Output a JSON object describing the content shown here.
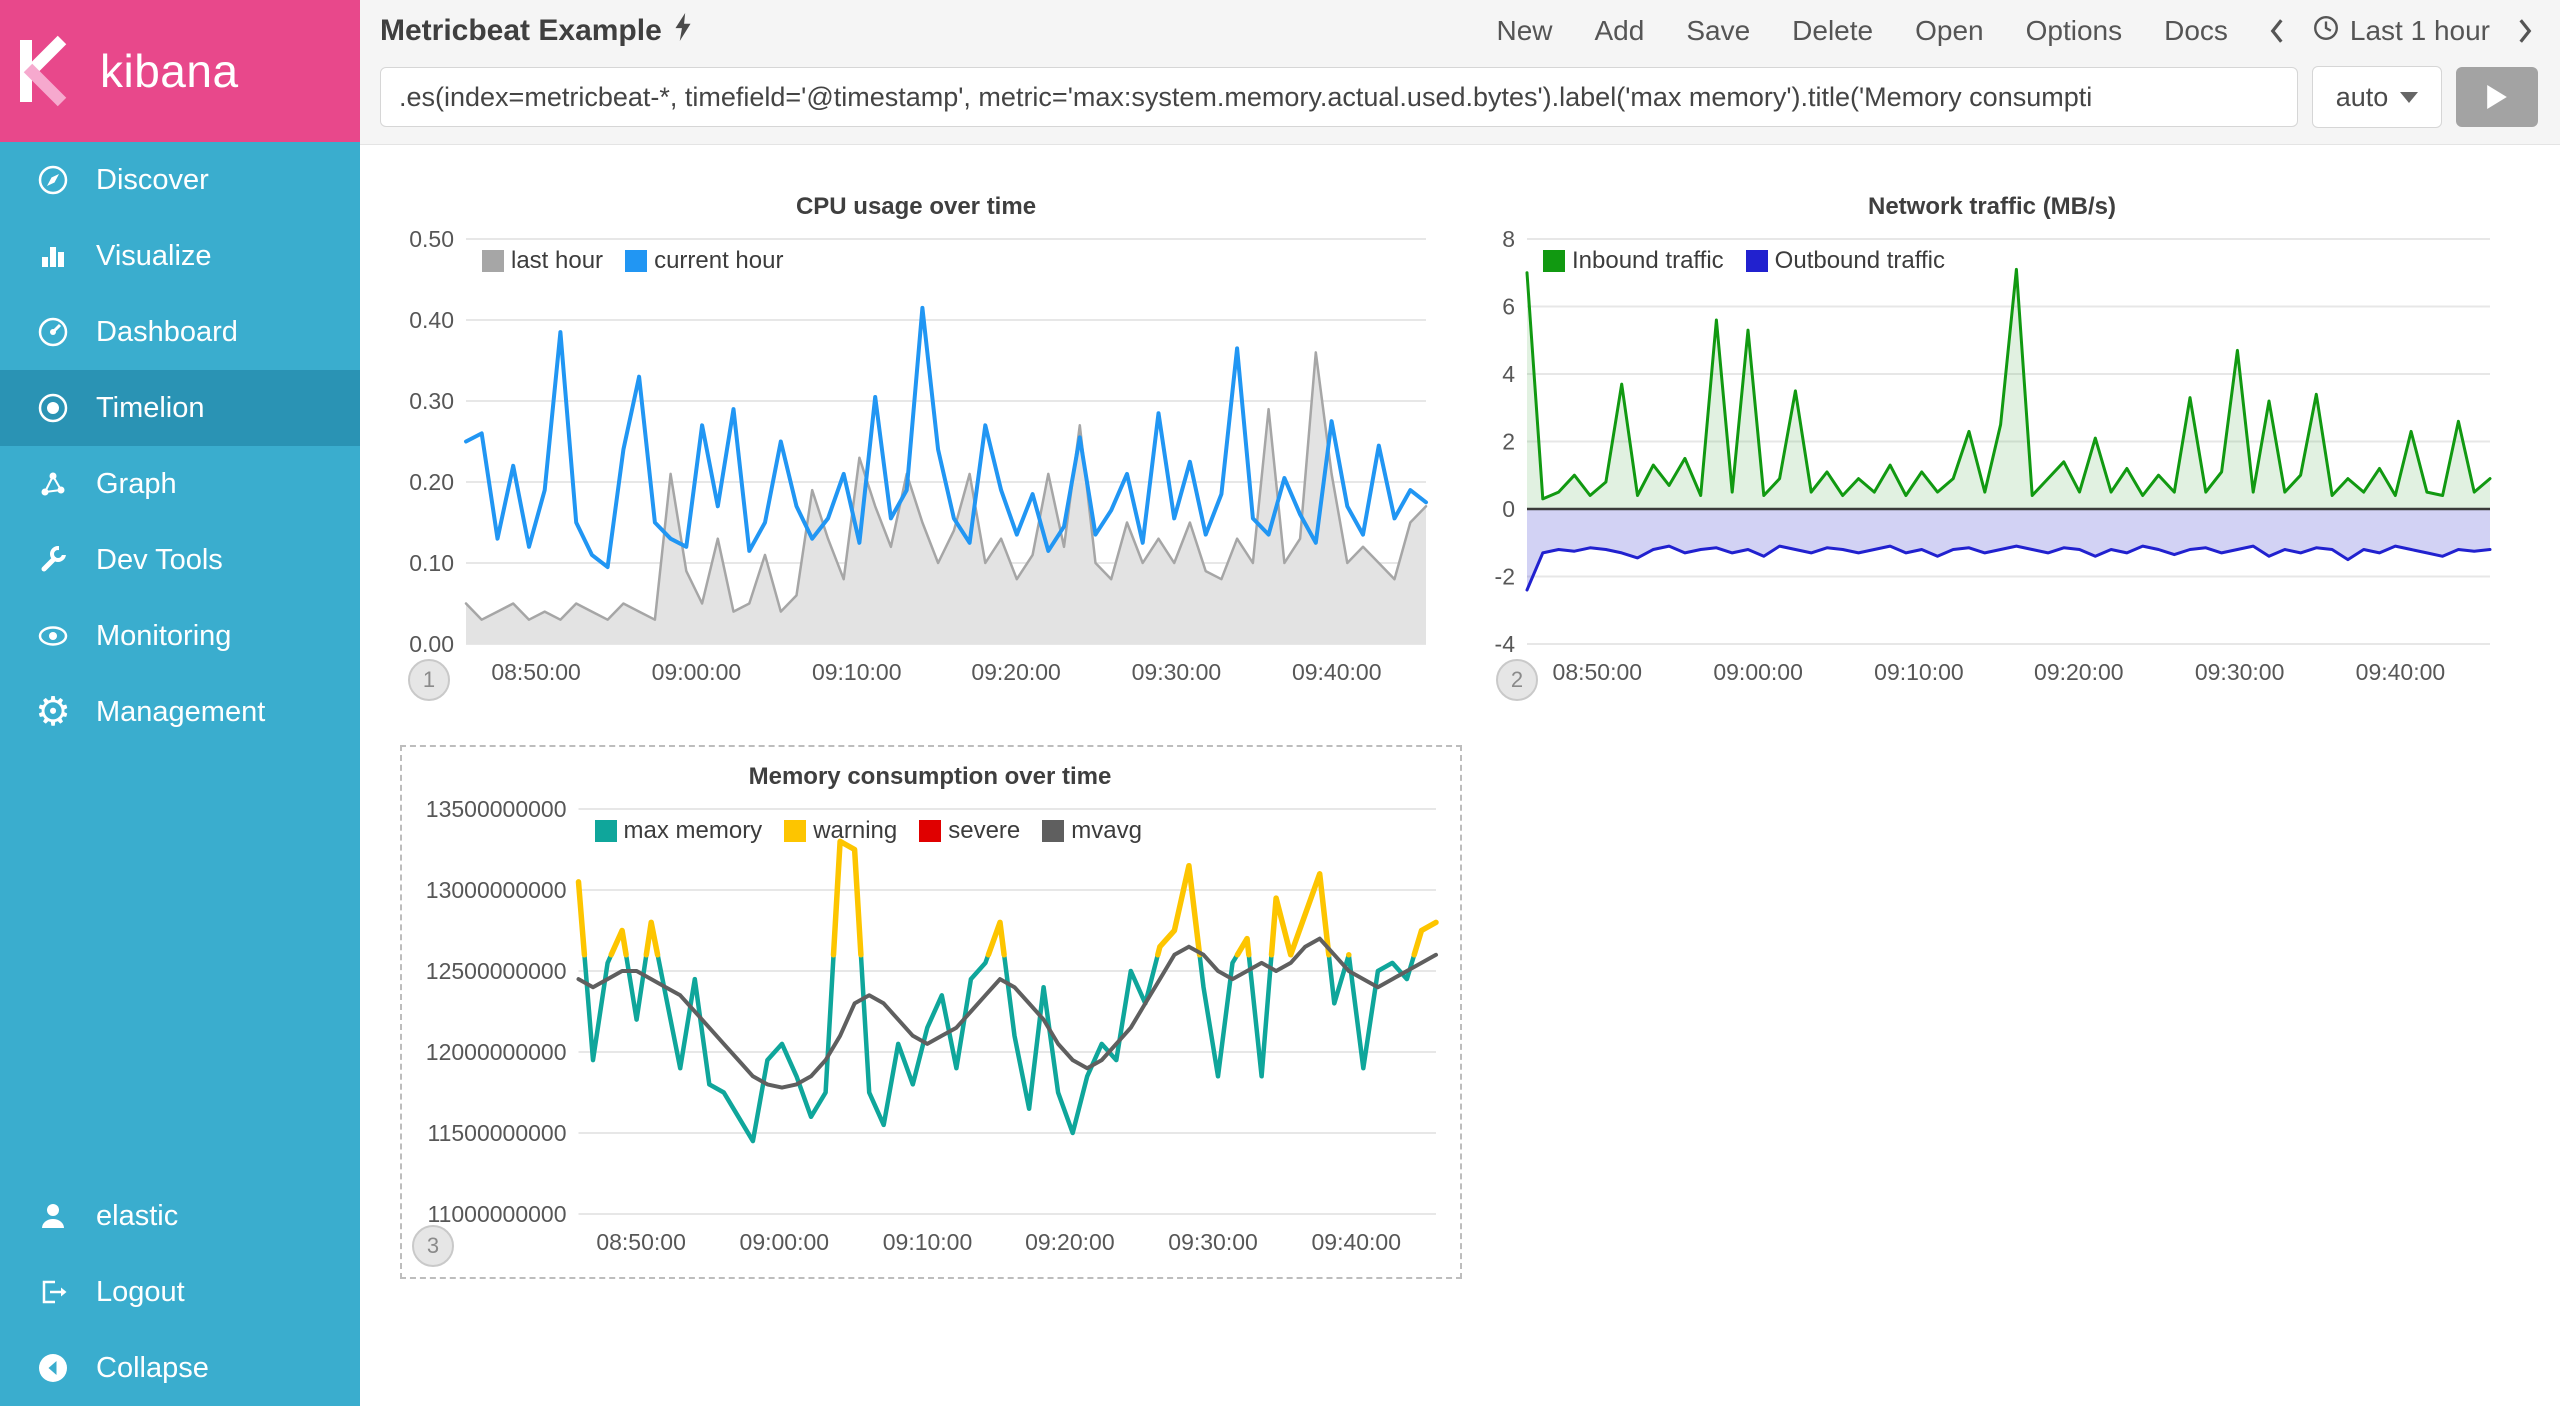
{
  "app": {
    "logo_text": "kibana"
  },
  "sidebar": {
    "items": [
      {
        "label": "Discover",
        "icon": "discover-icon"
      },
      {
        "label": "Visualize",
        "icon": "visualize-icon"
      },
      {
        "label": "Dashboard",
        "icon": "dashboard-icon"
      },
      {
        "label": "Timelion",
        "icon": "timelion-icon",
        "selected": true
      },
      {
        "label": "Graph",
        "icon": "graph-icon"
      },
      {
        "label": "Dev Tools",
        "icon": "wrench-icon"
      },
      {
        "label": "Monitoring",
        "icon": "eye-icon"
      },
      {
        "label": "Management",
        "icon": "gear-icon"
      }
    ],
    "footer_items": [
      {
        "label": "elastic",
        "icon": "user-icon"
      },
      {
        "label": "Logout",
        "icon": "logout-icon"
      },
      {
        "label": "Collapse",
        "icon": "collapse-icon"
      }
    ]
  },
  "header": {
    "title": "Metricbeat Example",
    "menu": [
      "New",
      "Add",
      "Save",
      "Delete",
      "Open",
      "Options",
      "Docs"
    ],
    "time_range": "Last 1 hour"
  },
  "querybar": {
    "query": ".es(index=metricbeat-*, timefield='@timestamp', metric='max:system.memory.actual.used.bytes').label('max memory').title('Memory consumpti",
    "interval": "auto"
  },
  "chart_data": [
    {
      "type": "line",
      "title": "CPU usage over time",
      "badge": "1",
      "ylim": [
        0,
        0.5
      ],
      "y_ticks": [
        {
          "value": 0,
          "label": "0.00"
        },
        {
          "value": 0.1,
          "label": "0.10"
        },
        {
          "value": 0.2,
          "label": "0.20"
        },
        {
          "value": 0.3,
          "label": "0.30"
        },
        {
          "value": 0.4,
          "label": "0.40"
        },
        {
          "value": 0.5,
          "label": "0.50"
        }
      ],
      "x_ticks": [
        {
          "f": 0.073,
          "label": "08:50:00"
        },
        {
          "f": 0.24,
          "label": "09:00:00"
        },
        {
          "f": 0.407,
          "label": "09:10:00"
        },
        {
          "f": 0.573,
          "label": "09:20:00"
        },
        {
          "f": 0.74,
          "label": "09:30:00"
        },
        {
          "f": 0.907,
          "label": "09:40:00"
        }
      ],
      "series": [
        {
          "name": "last hour",
          "color": "#A6A6A6",
          "fill": "#E3E3E3",
          "draw": "area",
          "width": 2.5,
          "values": [
            0.05,
            0.03,
            0.04,
            0.05,
            0.03,
            0.04,
            0.03,
            0.05,
            0.04,
            0.03,
            0.05,
            0.04,
            0.03,
            0.21,
            0.09,
            0.05,
            0.13,
            0.04,
            0.05,
            0.11,
            0.04,
            0.06,
            0.19,
            0.13,
            0.08,
            0.23,
            0.17,
            0.12,
            0.21,
            0.15,
            0.1,
            0.14,
            0.21,
            0.1,
            0.13,
            0.08,
            0.11,
            0.21,
            0.12,
            0.27,
            0.1,
            0.08,
            0.15,
            0.1,
            0.13,
            0.1,
            0.15,
            0.09,
            0.08,
            0.13,
            0.1,
            0.29,
            0.1,
            0.13,
            0.36,
            0.21,
            0.1,
            0.12,
            0.1,
            0.08,
            0.15,
            0.17
          ]
        },
        {
          "name": "current hour",
          "color": "#2196F3",
          "draw": "line",
          "width": 4,
          "values": [
            0.25,
            0.26,
            0.13,
            0.22,
            0.12,
            0.19,
            0.385,
            0.15,
            0.11,
            0.095,
            0.24,
            0.33,
            0.15,
            0.13,
            0.12,
            0.27,
            0.17,
            0.29,
            0.115,
            0.15,
            0.25,
            0.17,
            0.13,
            0.155,
            0.21,
            0.125,
            0.305,
            0.155,
            0.19,
            0.415,
            0.24,
            0.155,
            0.125,
            0.27,
            0.19,
            0.135,
            0.185,
            0.115,
            0.145,
            0.255,
            0.135,
            0.165,
            0.21,
            0.125,
            0.285,
            0.155,
            0.225,
            0.135,
            0.185,
            0.365,
            0.155,
            0.135,
            0.205,
            0.16,
            0.125,
            0.275,
            0.17,
            0.135,
            0.245,
            0.155,
            0.19,
            0.175
          ]
        }
      ]
    },
    {
      "type": "area",
      "title": "Network traffic (MB/s)",
      "badge": "2",
      "ylim": [
        -4,
        8
      ],
      "zero_line": {
        "show": true,
        "color": "#3B3B3B",
        "width": 2.5
      },
      "y_ticks": [
        {
          "value": -4,
          "label": "-4"
        },
        {
          "value": -2,
          "label": "-2"
        },
        {
          "value": 0,
          "label": "0"
        },
        {
          "value": 2,
          "label": "2"
        },
        {
          "value": 4,
          "label": "4"
        },
        {
          "value": 6,
          "label": "6"
        },
        {
          "value": 8,
          "label": "8"
        }
      ],
      "x_ticks": [
        {
          "f": 0.073,
          "label": "08:50:00"
        },
        {
          "f": 0.24,
          "label": "09:00:00"
        },
        {
          "f": 0.407,
          "label": "09:10:00"
        },
        {
          "f": 0.573,
          "label": "09:20:00"
        },
        {
          "f": 0.74,
          "label": "09:30:00"
        },
        {
          "f": 0.907,
          "label": "09:40:00"
        }
      ],
      "series": [
        {
          "name": "Inbound traffic",
          "color": "#119911",
          "fill": "rgba(70,170,70,0.16)",
          "draw": "area",
          "width": 3,
          "values": [
            7.0,
            0.3,
            0.5,
            1.0,
            0.4,
            0.8,
            3.7,
            0.4,
            1.3,
            0.7,
            1.5,
            0.4,
            5.6,
            0.5,
            5.3,
            0.4,
            0.9,
            3.5,
            0.5,
            1.1,
            0.4,
            0.9,
            0.5,
            1.3,
            0.4,
            1.1,
            0.5,
            0.9,
            2.3,
            0.5,
            2.5,
            7.1,
            0.4,
            0.9,
            1.4,
            0.5,
            2.1,
            0.5,
            1.2,
            0.4,
            1.0,
            0.5,
            3.3,
            0.5,
            1.1,
            4.7,
            0.5,
            3.2,
            0.5,
            1.0,
            3.4,
            0.4,
            0.9,
            0.5,
            1.2,
            0.4,
            2.3,
            0.5,
            0.4,
            2.6,
            0.5,
            0.9
          ]
        },
        {
          "name": "Outbound traffic",
          "color": "#2121CF",
          "fill": "rgba(95,95,215,0.28)",
          "draw": "area",
          "width": 3,
          "values": [
            -2.4,
            -1.3,
            -1.2,
            -1.25,
            -1.15,
            -1.2,
            -1.3,
            -1.45,
            -1.2,
            -1.1,
            -1.3,
            -1.2,
            -1.15,
            -1.3,
            -1.2,
            -1.4,
            -1.1,
            -1.2,
            -1.3,
            -1.15,
            -1.2,
            -1.3,
            -1.2,
            -1.1,
            -1.3,
            -1.2,
            -1.4,
            -1.2,
            -1.15,
            -1.3,
            -1.2,
            -1.1,
            -1.2,
            -1.3,
            -1.15,
            -1.2,
            -1.4,
            -1.2,
            -1.3,
            -1.1,
            -1.2,
            -1.35,
            -1.2,
            -1.15,
            -1.3,
            -1.2,
            -1.1,
            -1.4,
            -1.2,
            -1.3,
            -1.15,
            -1.2,
            -1.5,
            -1.2,
            -1.3,
            -1.1,
            -1.2,
            -1.3,
            -1.4,
            -1.2,
            -1.25,
            -1.2
          ]
        }
      ]
    },
    {
      "type": "line",
      "title": "Memory consumption over time",
      "badge": "3",
      "selected": true,
      "unit": "bytes",
      "value_multiplier": 1000000000,
      "ylim": [
        11,
        13.5
      ],
      "y_ticks": [
        {
          "value": 11,
          "label": "11000000000"
        },
        {
          "value": 11.5,
          "label": "11500000000"
        },
        {
          "value": 12,
          "label": "12000000000"
        },
        {
          "value": 12.5,
          "label": "12500000000"
        },
        {
          "value": 13,
          "label": "13000000000"
        },
        {
          "value": 13.5,
          "label": "13500000000"
        }
      ],
      "x_ticks": [
        {
          "f": 0.073,
          "label": "08:50:00"
        },
        {
          "f": 0.24,
          "label": "09:00:00"
        },
        {
          "f": 0.407,
          "label": "09:10:00"
        },
        {
          "f": 0.573,
          "label": "09:20:00"
        },
        {
          "f": 0.74,
          "label": "09:30:00"
        },
        {
          "f": 0.907,
          "label": "09:40:00"
        }
      ],
      "series": [
        {
          "name": "max memory",
          "color": "#0FA69B",
          "draw": "line",
          "width": 4.5,
          "values": [
            13.05,
            11.95,
            12.55,
            12.75,
            12.2,
            12.8,
            12.35,
            11.9,
            12.45,
            11.8,
            11.75,
            11.6,
            11.45,
            11.95,
            12.05,
            11.85,
            11.6,
            11.75,
            13.3,
            13.25,
            11.75,
            11.55,
            12.05,
            11.8,
            12.15,
            12.35,
            11.9,
            12.45,
            12.55,
            12.8,
            12.1,
            11.65,
            12.4,
            11.75,
            11.5,
            11.85,
            12.05,
            11.95,
            12.5,
            12.3,
            12.65,
            12.75,
            13.15,
            12.4,
            11.85,
            12.55,
            12.7,
            11.85,
            12.95,
            12.6,
            12.85,
            13.1,
            12.3,
            12.6,
            11.9,
            12.5,
            12.55,
            12.45,
            12.75,
            12.8
          ]
        },
        {
          "name": "warning",
          "color": "#FDC500",
          "draw": "threshold-overlay",
          "width": 5.5,
          "source": 0,
          "threshold": 12.6
        },
        {
          "name": "severe",
          "color": "#E00000",
          "draw": "threshold-overlay",
          "width": 5.5,
          "source": 0,
          "threshold": 13.6
        },
        {
          "name": "mvavg",
          "color": "#5F5F5F",
          "draw": "line",
          "width": 4,
          "values": [
            12.45,
            12.4,
            12.45,
            12.5,
            12.5,
            12.45,
            12.4,
            12.35,
            12.25,
            12.15,
            12.05,
            11.95,
            11.85,
            11.8,
            11.78,
            11.8,
            11.85,
            11.95,
            12.1,
            12.3,
            12.35,
            12.3,
            12.2,
            12.1,
            12.05,
            12.1,
            12.15,
            12.25,
            12.35,
            12.45,
            12.4,
            12.3,
            12.2,
            12.05,
            11.95,
            11.9,
            11.95,
            12.05,
            12.15,
            12.3,
            12.45,
            12.6,
            12.65,
            12.6,
            12.5,
            12.45,
            12.5,
            12.55,
            12.5,
            12.55,
            12.65,
            12.7,
            12.6,
            12.5,
            12.45,
            12.4,
            12.45,
            12.5,
            12.55,
            12.6
          ]
        }
      ]
    }
  ]
}
